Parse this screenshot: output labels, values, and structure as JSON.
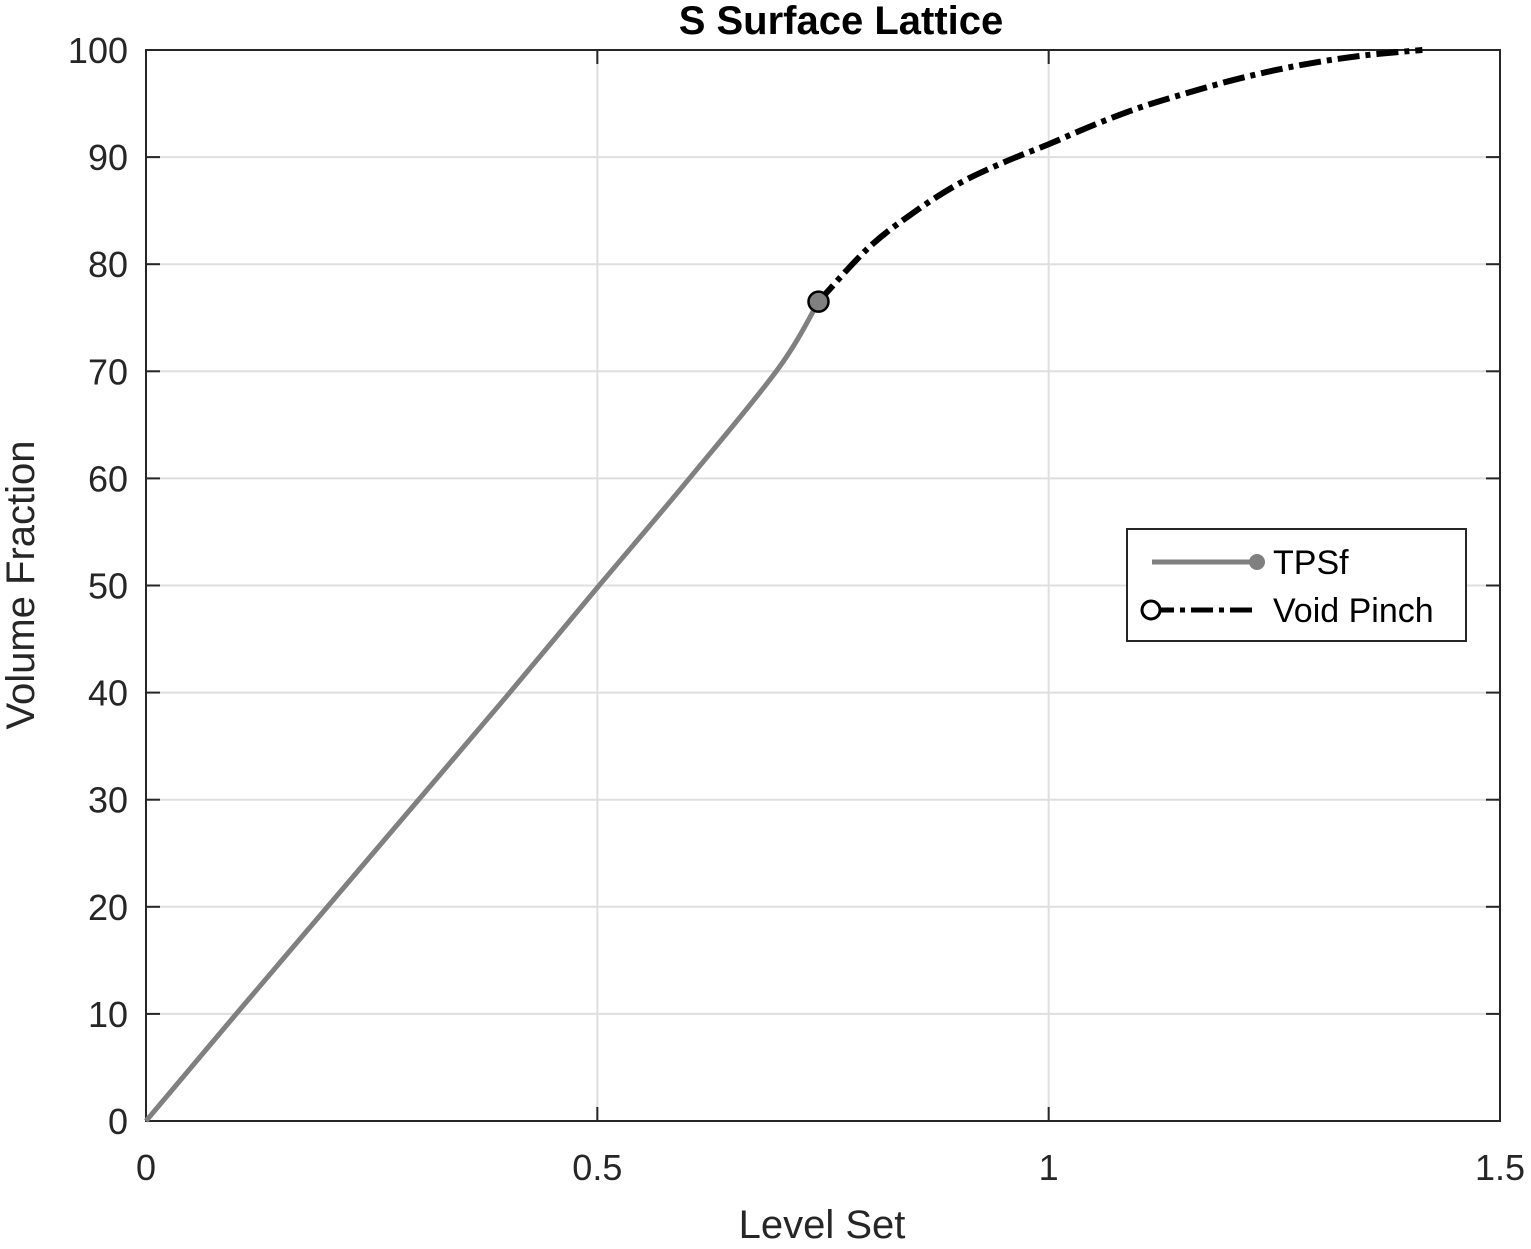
{
  "chart_data": {
    "type": "line",
    "title": "S Surface Lattice",
    "xlabel": "Level Set",
    "ylabel": "Volume Fraction",
    "xlim": [
      0,
      1.5
    ],
    "ylim": [
      0,
      100
    ],
    "xticks": [
      0,
      0.5,
      1,
      1.5
    ],
    "xtick_labels": [
      "0",
      "0.5",
      "1",
      "1.5"
    ],
    "yticks": [
      0,
      10,
      20,
      30,
      40,
      50,
      60,
      70,
      80,
      90,
      100
    ],
    "ytick_labels": [
      "0",
      "10",
      "20",
      "30",
      "40",
      "50",
      "60",
      "70",
      "80",
      "90",
      "100"
    ],
    "grid": true,
    "legend_position": "right",
    "series": [
      {
        "name": "TPSf",
        "color": "#808080",
        "line_style": "solid",
        "marker": "filled-circle-at-end",
        "x": [
          0,
          0.1,
          0.2,
          0.3,
          0.4,
          0.5,
          0.6,
          0.7,
          0.745
        ],
        "y": [
          0,
          10,
          19.9,
          29.8,
          39.7,
          49.8,
          59.8,
          70.2,
          76.5
        ]
      },
      {
        "name": "Void Pinch",
        "color": "#000000",
        "line_style": "dash-dot",
        "marker": "open-circle-at-start",
        "x": [
          0.745,
          0.8,
          0.85,
          0.9,
          0.95,
          1.0,
          1.05,
          1.1,
          1.15,
          1.2,
          1.25,
          1.3,
          1.35,
          1.4,
          1.414
        ],
        "y": [
          76.5,
          81.5,
          84.8,
          87.5,
          89.5,
          91.2,
          93.0,
          94.6,
          95.9,
          97.1,
          98.1,
          98.9,
          99.5,
          99.9,
          100
        ]
      }
    ]
  }
}
